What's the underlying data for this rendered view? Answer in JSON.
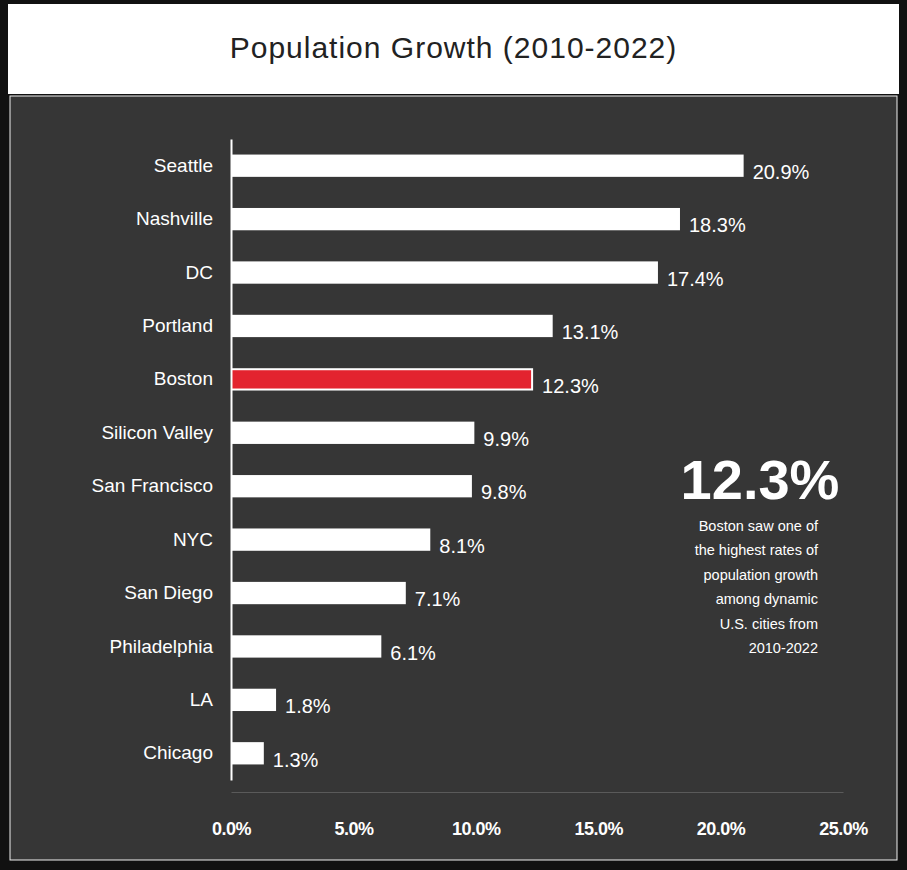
{
  "chart_data": {
    "type": "bar",
    "orientation": "horizontal",
    "title": "Population Growth (2010-2022)",
    "categories": [
      "Seattle",
      "Nashville",
      "DC",
      "Portland",
      "Boston",
      "Silicon Valley",
      "San Francisco",
      "NYC",
      "San Diego",
      "Philadelphia",
      "LA",
      "Chicago"
    ],
    "values": [
      20.9,
      18.3,
      17.4,
      13.1,
      12.3,
      9.9,
      9.8,
      8.1,
      7.1,
      6.1,
      1.8,
      1.3
    ],
    "value_labels": [
      "20.9%",
      "18.3%",
      "17.4%",
      "13.1%",
      "12.3%",
      "9.9%",
      "9.8%",
      "8.1%",
      "7.1%",
      "6.1%",
      "1.8%",
      "1.3%"
    ],
    "colors": [
      "#ffffff",
      "#ffffff",
      "#ffffff",
      "#ffffff",
      "#e3232f",
      "#ffffff",
      "#ffffff",
      "#ffffff",
      "#ffffff",
      "#ffffff",
      "#ffffff",
      "#ffffff"
    ],
    "data_labels": true,
    "grid": false,
    "xlim": [
      0,
      25
    ],
    "xticks": [
      {
        "value": 0,
        "label": "0.0%"
      },
      {
        "value": 5,
        "label": "5.0%"
      },
      {
        "value": 10,
        "label": "10.0%"
      },
      {
        "value": 15,
        "label": "15.0%"
      },
      {
        "value": 20,
        "label": "20.0%"
      },
      {
        "value": 25,
        "label": "25.0%"
      }
    ],
    "annotation": {
      "title": "12.3%",
      "text": [
        "Boston saw one of",
        "the highest rates of",
        "population growth",
        "among dynamic",
        "U.S. cities from",
        "2010-2022"
      ]
    }
  }
}
